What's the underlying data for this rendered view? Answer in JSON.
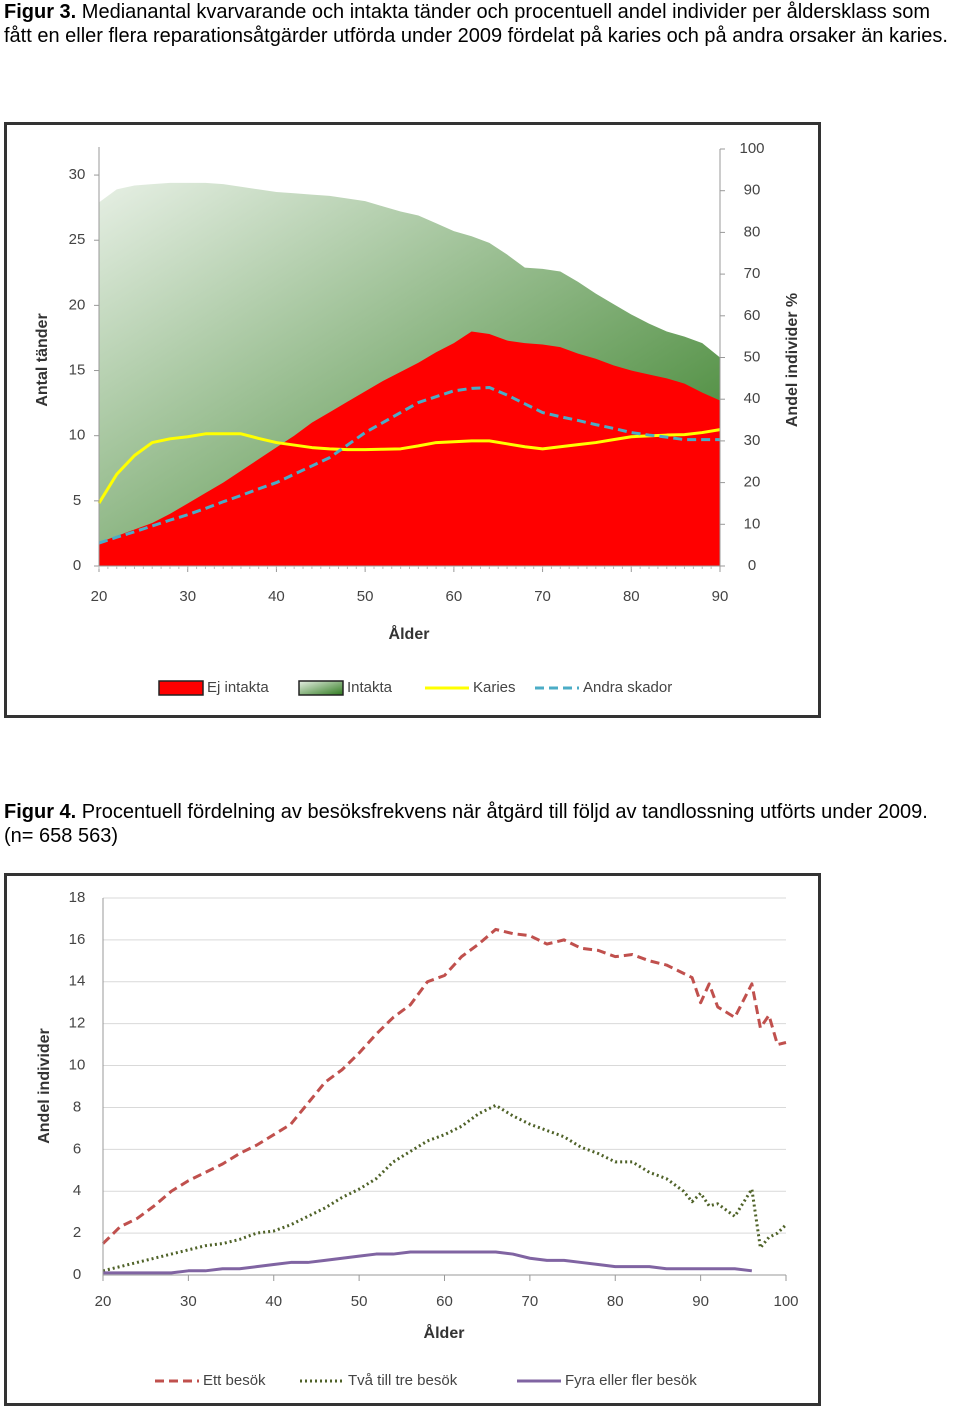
{
  "chart_data": [
    {
      "type": "area",
      "figure_label": "Figur 3.",
      "caption": "Medianantal kvarvarande och intakta tänder och procentuell andel individer per åldersklass som fått en eller flera reparationsåtgärder utförda under 2009 fördelat på karies och på andra orsaker än karies.",
      "y_label": "Antal tänder",
      "y2_label": "Andel individer %",
      "x_label": "Ålder",
      "x": [
        20,
        22,
        24,
        26,
        28,
        30,
        32,
        34,
        36,
        38,
        40,
        42,
        44,
        46,
        48,
        50,
        52,
        54,
        56,
        58,
        60,
        62,
        64,
        66,
        68,
        70,
        72,
        74,
        76,
        78,
        80,
        82,
        84,
        86,
        88,
        90
      ],
      "xlim": [
        20,
        90
      ],
      "xticks": [
        20,
        30,
        40,
        50,
        60,
        70,
        80,
        90
      ],
      "ylim": [
        0,
        32
      ],
      "yticks": [
        0,
        5,
        10,
        15,
        20,
        25,
        30
      ],
      "y2lim": [
        0,
        100
      ],
      "y2ticks": [
        0,
        10,
        20,
        30,
        40,
        50,
        60,
        70,
        80,
        90,
        100
      ],
      "grid": false,
      "series": [
        {
          "name": "Ej intakta",
          "kind": "area",
          "color": "#ff0000",
          "values": [
            1.8,
            2.3,
            2.8,
            3.3,
            4.0,
            4.8,
            5.6,
            6.4,
            7.3,
            8.2,
            9.1,
            10.0,
            11.0,
            11.8,
            12.6,
            13.4,
            14.2,
            14.9,
            15.6,
            16.4,
            17.1,
            18.0,
            17.8,
            17.3,
            17.1,
            17.0,
            16.8,
            16.3,
            15.9,
            15.4,
            15.0,
            14.7,
            14.4,
            14.0,
            13.3,
            12.7
          ]
        },
        {
          "name": "Intakta",
          "kind": "area",
          "color": "#2f7a1e",
          "gradient": true,
          "values": [
            27.9,
            28.9,
            29.2,
            29.3,
            29.4,
            29.4,
            29.4,
            29.3,
            29.1,
            28.9,
            28.7,
            28.6,
            28.5,
            28.4,
            28.2,
            28.0,
            27.6,
            27.2,
            26.9,
            26.3,
            25.7,
            25.3,
            24.8,
            23.9,
            22.9,
            22.8,
            22.6,
            21.8,
            20.9,
            20.1,
            19.3,
            18.6,
            18.0,
            17.6,
            17.1,
            16.0
          ]
        },
        {
          "name": "Karies",
          "kind": "line",
          "axis": "y2",
          "color": "#ffff00",
          "values": [
            15.1,
            22,
            26.5,
            29.6,
            30.5,
            31.0,
            31.7,
            31.7,
            31.7,
            30.6,
            29.6,
            29.0,
            28.4,
            28.1,
            27.9,
            27.9,
            28.0,
            28.1,
            28.8,
            29.6,
            29.8,
            30.0,
            30.0,
            29.3,
            28.6,
            28.1,
            28.6,
            29.1,
            29.6,
            30.3,
            31.0,
            31.2,
            31.4,
            31.5,
            32.0,
            32.7
          ]
        },
        {
          "name": "Andra skador",
          "kind": "line",
          "axis": "y2",
          "color": "#4bacc6",
          "dash": "dashed",
          "values": [
            5.5,
            6.9,
            8.2,
            9.6,
            11.0,
            12.3,
            13.8,
            15.4,
            16.9,
            18.5,
            20.0,
            22.0,
            24.0,
            26.0,
            29.0,
            32.0,
            34.4,
            36.8,
            39.2,
            40.6,
            42.0,
            42.6,
            42.8,
            41.0,
            38.9,
            36.8,
            35.8,
            34.9,
            33.9,
            33.0,
            32.0,
            31.4,
            30.9,
            30.3,
            30.3,
            30.3
          ]
        }
      ]
    },
    {
      "type": "line",
      "figure_label": "Figur 4.",
      "caption": "Procentuell fördelning av besöksfrekvens när åtgärd till följd av tandlossning utförts under 2009. (n= 658 563)",
      "y_label": "Andel individer",
      "x_label": "Ålder",
      "x": [
        20,
        22,
        24,
        26,
        28,
        30,
        32,
        34,
        36,
        38,
        40,
        42,
        44,
        46,
        48,
        50,
        52,
        54,
        56,
        58,
        60,
        62,
        64,
        66,
        68,
        70,
        72,
        74,
        76,
        78,
        80,
        82,
        84,
        86,
        88,
        89,
        90,
        91,
        92,
        94,
        96,
        97,
        98,
        99,
        100
      ],
      "xlim": [
        20,
        100
      ],
      "xticks": [
        20,
        30,
        40,
        50,
        60,
        70,
        80,
        90,
        100
      ],
      "ylim": [
        0,
        18
      ],
      "yticks": [
        0,
        2,
        4,
        6,
        8,
        10,
        12,
        14,
        16,
        18
      ],
      "grid": true,
      "series": [
        {
          "name": "Ett besök",
          "kind": "line",
          "color": "#c0504d",
          "dash": "dashed",
          "values": [
            1.5,
            2.3,
            2.7,
            3.3,
            4.0,
            4.5,
            4.9,
            5.3,
            5.8,
            6.2,
            6.7,
            7.2,
            8.2,
            9.2,
            9.8,
            10.6,
            11.5,
            12.3,
            12.9,
            14.0,
            14.3,
            15.2,
            15.8,
            16.5,
            16.3,
            16.2,
            15.8,
            16.0,
            15.6,
            15.5,
            15.2,
            15.3,
            15.0,
            14.8,
            14.4,
            14.2,
            13.0,
            13.9,
            12.8,
            12.3,
            13.9,
            11.8,
            12.4,
            11.0,
            11.1
          ]
        },
        {
          "name": "Två till tre besök",
          "kind": "line",
          "color": "#4f6228",
          "dash": "dotted",
          "values": [
            0.2,
            0.4,
            0.6,
            0.8,
            1.0,
            1.2,
            1.4,
            1.5,
            1.7,
            2.0,
            2.1,
            2.4,
            2.8,
            3.2,
            3.7,
            4.1,
            4.6,
            5.4,
            5.9,
            6.4,
            6.7,
            7.1,
            7.7,
            8.1,
            7.6,
            7.2,
            6.9,
            6.6,
            6.1,
            5.8,
            5.4,
            5.4,
            4.9,
            4.6,
            4.0,
            3.5,
            3.9,
            3.3,
            3.4,
            2.8,
            4.1,
            1.3,
            1.8,
            2.0,
            2.4
          ]
        },
        {
          "name": "Fyra eller fler besök",
          "kind": "line",
          "color": "#8064a2",
          "values": [
            0.1,
            0.1,
            0.1,
            0.1,
            0.1,
            0.2,
            0.2,
            0.3,
            0.3,
            0.4,
            0.5,
            0.6,
            0.6,
            0.7,
            0.8,
            0.9,
            1.0,
            1.0,
            1.1,
            1.1,
            1.1,
            1.1,
            1.1,
            1.1,
            1.0,
            0.8,
            0.7,
            0.7,
            0.6,
            0.5,
            0.4,
            0.4,
            0.4,
            0.3,
            0.3,
            0.3,
            0.3,
            0.3,
            0.3,
            0.3,
            0.2,
            null,
            null,
            null,
            null
          ]
        }
      ]
    }
  ]
}
